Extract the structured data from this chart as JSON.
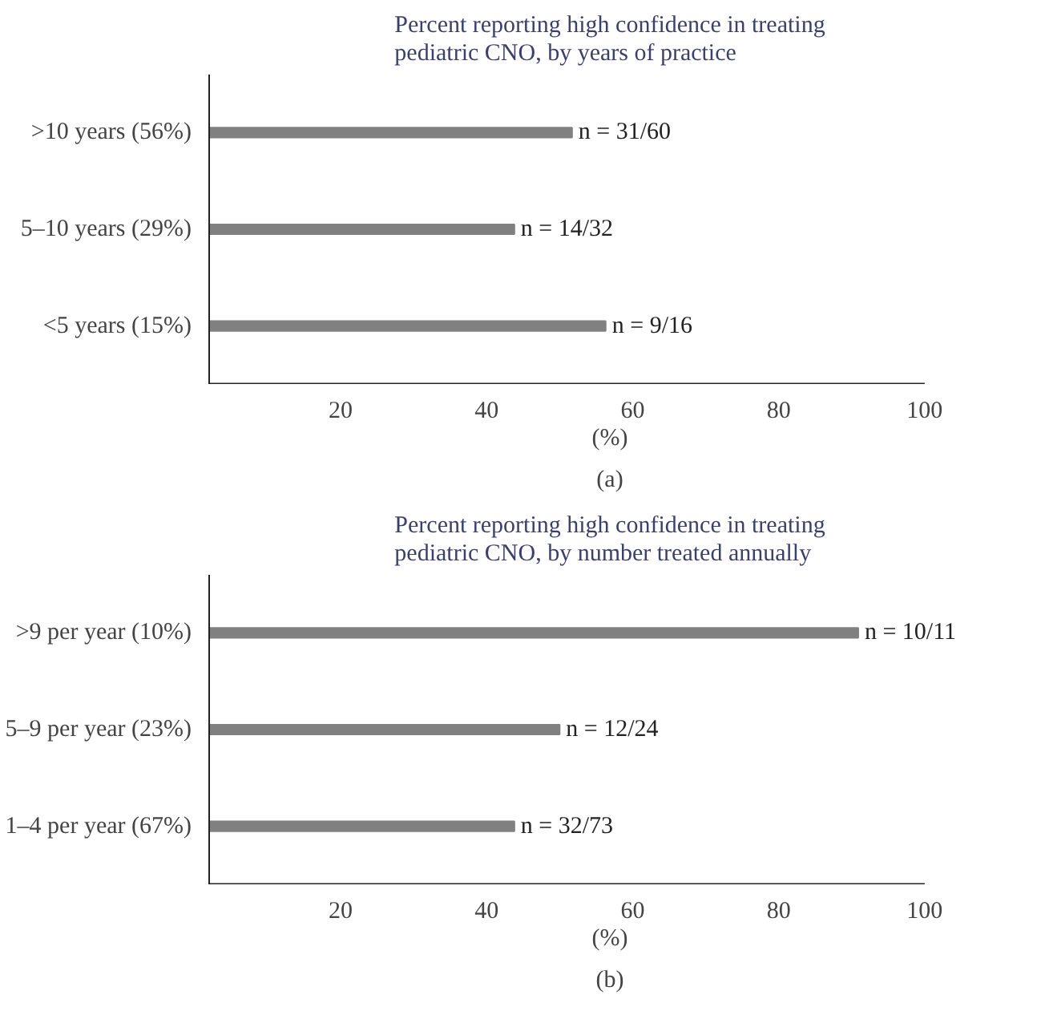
{
  "chart_data": [
    {
      "type": "bar",
      "orientation": "horizontal",
      "title": "Percent reporting high confidence in treating pediatric CNO, by years of practice",
      "categories": [
        ">10 years (56%)",
        "5–10 years (29%)",
        "<5 years (15%)"
      ],
      "values": [
        51.7,
        43.8,
        56.3
      ],
      "value_labels": [
        "n = 31/60",
        "n = 14/32",
        "n = 9/16"
      ],
      "color": "#808080",
      "xlabel": "(%)",
      "xlim": [
        2,
        100
      ],
      "xticks": [
        20,
        40,
        60,
        80,
        100
      ],
      "grid": false,
      "annotations": [
        "(a)"
      ]
    },
    {
      "type": "bar",
      "orientation": "horizontal",
      "title": "Percent reporting high confidence in treating pediatric CNO, by number treated annually",
      "categories": [
        ">9 per year (10%)",
        "5–9 per year (23%)",
        "1–4 per year (67%)"
      ],
      "values": [
        90.9,
        50.0,
        43.8
      ],
      "value_labels": [
        "n = 10/11",
        "n = 12/24",
        "n = 32/73"
      ],
      "color": "#808080",
      "xlabel": "(%)",
      "xlim": [
        2,
        100
      ],
      "xticks": [
        20,
        40,
        60,
        80,
        100
      ],
      "grid": false,
      "annotations": [
        "(b)"
      ]
    }
  ]
}
